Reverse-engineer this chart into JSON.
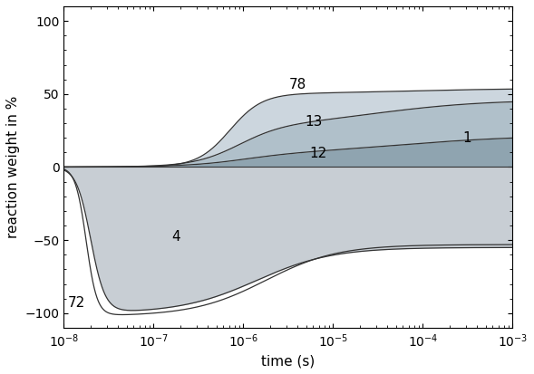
{
  "title": "",
  "xlabel": "time (s)",
  "ylabel": "reaction weight in %",
  "xlim_log": [
    -8,
    -3
  ],
  "ylim": [
    -110,
    110
  ],
  "yticks": [
    -100,
    -50,
    0,
    50,
    100
  ],
  "curve_color": "#333333",
  "fill_color_4": "#c8ced4",
  "fill_color_1": "#8fa4b0",
  "fill_color_13": "#b0c0ca",
  "fill_color_78": "#ccd6de",
  "fontsize_labels": 11,
  "fontsize_axis": 11
}
